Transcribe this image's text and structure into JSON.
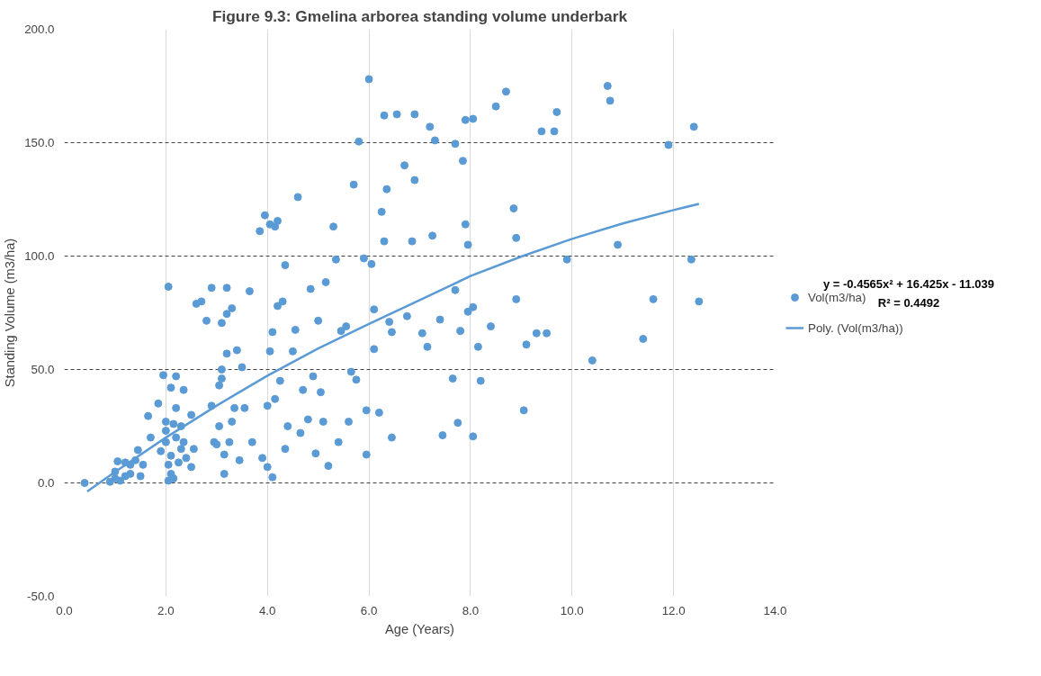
{
  "chart_data": {
    "type": "scatter",
    "title": "Figure 9.3: Gmelina arborea standing volume underbark",
    "xlabel": "Age (Years)",
    "ylabel": "Standing Volume (m3/ha)",
    "xlim": [
      0,
      14
    ],
    "ylim": [
      -50,
      200
    ],
    "xticks": [
      {
        "value": 0,
        "label": "0.0"
      },
      {
        "value": 2,
        "label": "2.0"
      },
      {
        "value": 4,
        "label": "4.0"
      },
      {
        "value": 6,
        "label": "6.0"
      },
      {
        "value": 8,
        "label": "8.0"
      },
      {
        "value": 10,
        "label": "10.0"
      },
      {
        "value": 12,
        "label": "12.0"
      },
      {
        "value": 14,
        "label": "14.0"
      }
    ],
    "yticks": [
      {
        "value": -50,
        "label": "-50.0"
      },
      {
        "value": 0,
        "label": "0.0"
      },
      {
        "value": 50,
        "label": "50.0"
      },
      {
        "value": 100,
        "label": "100.0"
      },
      {
        "value": 150,
        "label": "150.0"
      },
      {
        "value": 200,
        "label": "200.0"
      }
    ],
    "grid": true,
    "legend": "right",
    "marker": "circle",
    "annotations": [
      "y = -0.4565x² + 16.425x - 11.039",
      "R² = 0.4492"
    ],
    "series": [
      {
        "name": "Vol(m3/ha)",
        "color": "#5b9bd5",
        "x": [
          0.4,
          0.9,
          1.0,
          1.0,
          1.05,
          1.1,
          1.2,
          1.2,
          1.3,
          1.3,
          1.4,
          1.45,
          1.5,
          1.55,
          1.65,
          1.7,
          1.85,
          1.9,
          1.95,
          2.0,
          2.0,
          2.0,
          2.05,
          2.05,
          2.05,
          2.1,
          2.1,
          2.1,
          2.15,
          2.15,
          2.2,
          2.2,
          2.2,
          2.25,
          2.3,
          2.3,
          2.35,
          2.35,
          2.4,
          2.5,
          2.55,
          2.5,
          2.6,
          2.7,
          2.8,
          2.9,
          2.9,
          2.95,
          3.0,
          3.05,
          3.05,
          3.1,
          3.1,
          3.1,
          3.15,
          3.15,
          3.2,
          3.2,
          3.2,
          3.25,
          3.3,
          3.3,
          3.35,
          3.4,
          3.45,
          3.5,
          3.55,
          3.65,
          3.7,
          3.85,
          3.9,
          3.95,
          4.0,
          4.0,
          4.05,
          4.05,
          4.1,
          4.1,
          4.15,
          4.15,
          4.2,
          4.2,
          4.25,
          4.3,
          4.35,
          4.35,
          4.4,
          4.5,
          4.55,
          4.6,
          4.65,
          4.7,
          4.8,
          4.85,
          4.9,
          4.95,
          5.0,
          5.05,
          5.1,
          5.15,
          5.2,
          5.3,
          5.35,
          5.4,
          5.45,
          5.55,
          5.6,
          5.65,
          5.7,
          5.75,
          5.8,
          5.9,
          5.95,
          5.95,
          6.0,
          6.05,
          6.1,
          6.1,
          6.2,
          6.25,
          6.3,
          6.3,
          6.35,
          6.4,
          6.45,
          6.45,
          6.55,
          6.7,
          6.75,
          6.85,
          6.9,
          6.9,
          7.05,
          7.15,
          7.2,
          7.25,
          7.3,
          7.4,
          7.45,
          7.65,
          7.7,
          7.7,
          7.75,
          7.8,
          7.85,
          7.9,
          7.9,
          7.95,
          7.95,
          8.05,
          8.05,
          8.05,
          8.15,
          8.2,
          8.4,
          8.5,
          8.7,
          8.85,
          8.9,
          8.9,
          9.05,
          9.1,
          9.3,
          9.4,
          9.5,
          9.65,
          9.7,
          9.9,
          10.4,
          10.7,
          10.75,
          10.9,
          11.4,
          11.6,
          11.9,
          12.35,
          12.4,
          12.5
        ],
        "values": [
          0,
          0.5,
          2,
          5,
          9.5,
          1,
          3,
          9,
          8,
          4,
          10,
          14.5,
          3,
          8,
          29.5,
          20,
          35,
          14,
          47.5,
          18,
          27,
          23,
          86.5,
          1,
          8,
          42,
          12,
          4,
          2,
          26,
          33,
          20,
          47,
          9,
          25,
          15,
          18,
          41,
          11,
          30,
          15,
          7,
          79,
          80,
          71.5,
          86,
          34,
          18,
          17,
          43,
          25,
          70.5,
          50,
          46,
          12.5,
          4,
          86,
          74.5,
          57,
          18,
          77,
          27,
          33,
          58.5,
          10,
          51,
          33,
          84.5,
          18,
          111,
          11,
          118,
          34,
          7,
          114,
          58,
          2.5,
          66.5,
          113,
          37,
          115.5,
          78,
          45,
          80,
          96,
          15,
          25,
          58,
          67.5,
          126,
          22,
          41,
          28,
          85.5,
          47,
          13,
          71.5,
          40,
          27,
          88.5,
          7.5,
          113,
          98.5,
          18,
          67,
          69,
          27,
          49,
          131.5,
          45.5,
          150.5,
          99,
          12.5,
          32,
          178,
          96.5,
          59,
          76.5,
          31,
          119.5,
          162,
          106.5,
          129.5,
          71,
          66.5,
          20,
          162.5,
          140,
          73.5,
          106.5,
          162.5,
          133.5,
          66,
          60,
          157,
          109,
          151,
          72,
          21,
          46,
          149.5,
          85,
          26.5,
          67,
          142,
          160,
          114,
          105,
          75.5,
          160.5,
          77.5,
          20.5,
          60,
          45,
          69,
          166,
          172.5,
          121,
          108,
          81,
          32,
          61,
          66,
          155,
          66,
          155,
          163.5,
          98.5,
          54,
          175,
          168.5,
          105,
          63.5,
          81,
          149,
          98.5,
          157,
          80
        ]
      },
      {
        "name": "Poly. (Vol(m3/ha))",
        "type": "line",
        "color": "#5b9bd5",
        "marker": "none",
        "x": [
          0.45,
          1,
          2,
          3,
          4,
          5,
          6,
          7,
          8,
          9,
          10,
          11,
          12,
          12.5
        ],
        "values": [
          -3.8,
          4.9,
          20,
          34.1,
          47.3,
          59.3,
          70.1,
          80.6,
          91.2,
          99.8,
          107.6,
          114.4,
          120.3,
          123.0
        ]
      }
    ]
  }
}
